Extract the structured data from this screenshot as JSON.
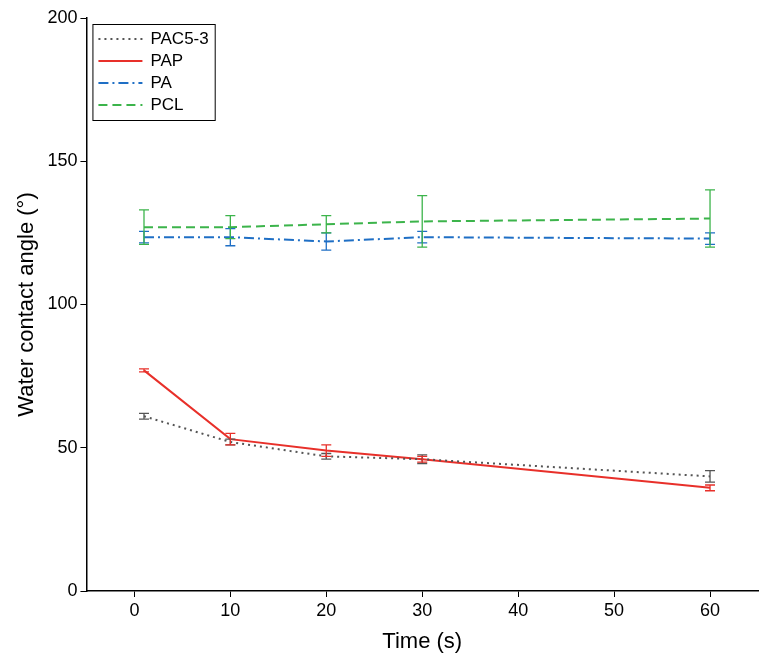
{
  "chart_data": {
    "type": "line",
    "x_label": "Time (s)",
    "y_label": "Water contact angle (°)",
    "x": [
      1,
      10,
      20,
      30,
      60
    ],
    "series": [
      {
        "name": "PAC5-3",
        "color": "#555555",
        "line_style": "dotted",
        "values": [
          61,
          52,
          47,
          46,
          40
        ],
        "errors": [
          1,
          1,
          1,
          1.5,
          2
        ]
      },
      {
        "name": "PAP",
        "color": "#e8302a",
        "line_style": "solid",
        "values": [
          77,
          53,
          49,
          46,
          36
        ],
        "errors": [
          0.5,
          2,
          2,
          1,
          1
        ]
      },
      {
        "name": "PA",
        "color": "#1f6fc5",
        "line_style": "dashdot",
        "values": [
          123.5,
          123.5,
          122,
          123.5,
          123
        ],
        "errors": [
          2,
          3,
          3,
          2,
          2
        ]
      },
      {
        "name": "PCL",
        "color": "#3cb44b",
        "line_style": "dashed",
        "values": [
          127,
          127,
          128,
          129,
          130
        ],
        "errors": [
          6,
          4,
          3,
          9,
          10
        ]
      }
    ],
    "xlim": [
      -5,
      65
    ],
    "xticks": [
      0,
      10,
      20,
      30,
      40,
      50,
      60
    ],
    "ylim": [
      0,
      200
    ],
    "yticks": [
      0,
      50,
      100,
      150,
      200
    ],
    "grid": false,
    "legend": "upper left"
  }
}
